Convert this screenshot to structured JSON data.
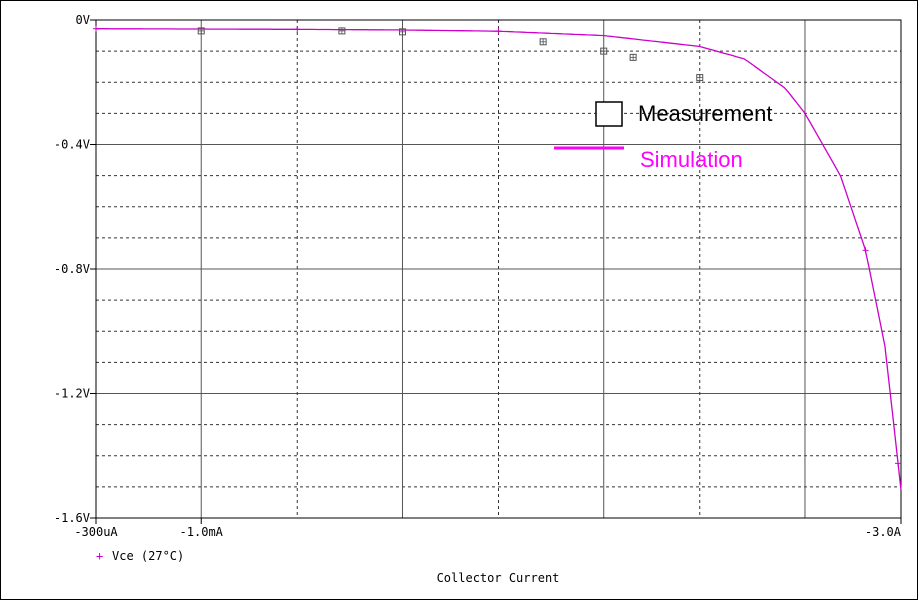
{
  "chart_data": {
    "type": "line",
    "xlabel": "Collector Current",
    "x_scale": "log",
    "xlim": [
      -0.0003,
      -3.0
    ],
    "ylim": [
      0,
      -1.6
    ],
    "grid": true,
    "x_ticks": [
      {
        "value": -0.0003,
        "label": "-300uA"
      },
      {
        "value": -0.001,
        "label": "-1.0mA"
      },
      {
        "value": -3.0,
        "label": "-3.0A"
      }
    ],
    "x_grid_values": [
      -0.0003,
      -0.001,
      -0.003,
      -0.01,
      -0.03,
      -0.1,
      -0.3,
      -1.0,
      -3.0
    ],
    "y_ticks": [
      {
        "value": 0,
        "label": "0V"
      },
      {
        "value": -0.4,
        "label": "-0.4V"
      },
      {
        "value": -0.8,
        "label": "-0.8V"
      },
      {
        "value": -1.2,
        "label": "-1.2V"
      },
      {
        "value": -1.6,
        "label": "-1.6V"
      }
    ],
    "series": [
      {
        "name": "Vce (27°C)",
        "style": "line",
        "color": "#cc00cc",
        "marker": "+",
        "x": [
          -0.0003,
          -0.001,
          -0.003,
          -0.01,
          -0.03,
          -0.1,
          -0.3,
          -0.5,
          -0.8,
          -1.0,
          -1.5,
          -2.0,
          -2.5,
          -3.0
        ],
        "y": [
          -0.028,
          -0.029,
          -0.03,
          -0.032,
          -0.036,
          -0.05,
          -0.085,
          -0.125,
          -0.22,
          -0.3,
          -0.5,
          -0.74,
          -1.05,
          -1.51
        ],
        "marker_x": [
          -0.0003,
          -0.003,
          -0.03,
          -2.0,
          -2.9
        ]
      },
      {
        "name": "Measurement",
        "style": "markers",
        "color": "#555555",
        "marker": "square",
        "x": [
          -0.001,
          -0.005,
          -0.01,
          -0.05,
          -0.1,
          -0.14,
          -0.3
        ],
        "y": [
          -0.035,
          -0.035,
          -0.038,
          -0.07,
          -0.1,
          -0.12,
          -0.185
        ]
      }
    ],
    "legend": [
      {
        "label": "Measurement",
        "marker": "square",
        "color": "#000000"
      },
      {
        "label": "Simulation",
        "marker": "line",
        "color": "#ff00ff"
      }
    ],
    "footer_legend": {
      "symbol": "+",
      "label": "Vce (27°C)"
    }
  }
}
